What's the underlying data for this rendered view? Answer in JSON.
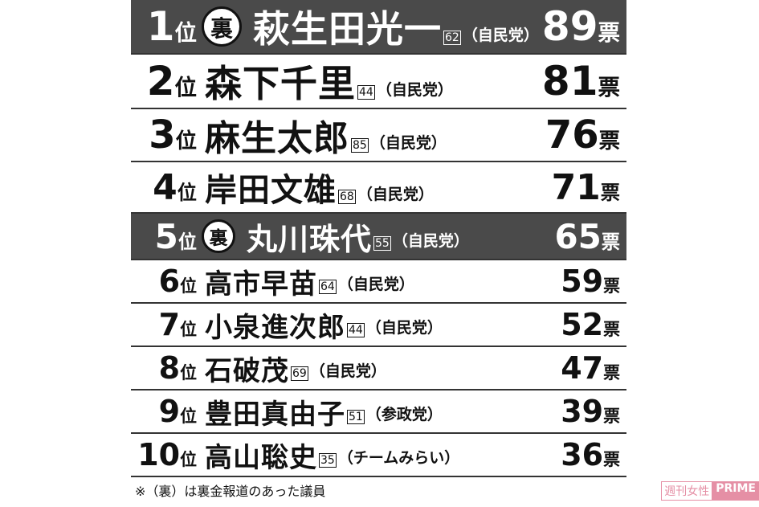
{
  "table": {
    "rows": [
      {
        "rank": 1,
        "rank_unit": "位",
        "mark": "裏",
        "name": "萩生田光一",
        "age": "62",
        "party": "（自民党）",
        "votes": 89,
        "votes_unit": "票"
      },
      {
        "rank": 2,
        "rank_unit": "位",
        "name": "森下千里",
        "age": "44",
        "party": "（自民党）",
        "votes": 81,
        "votes_unit": "票"
      },
      {
        "rank": 3,
        "rank_unit": "位",
        "name": "麻生太郎",
        "age": "85",
        "party": "（自民党）",
        "votes": 76,
        "votes_unit": "票"
      },
      {
        "rank": 4,
        "rank_unit": "位",
        "name": "岸田文雄",
        "age": "68",
        "party": "（自民党）",
        "votes": 71,
        "votes_unit": "票"
      },
      {
        "rank": 5,
        "rank_unit": "位",
        "mark": "裏",
        "name": "丸川珠代",
        "age": "55",
        "party": "（自民党）",
        "votes": 65,
        "votes_unit": "票"
      },
      {
        "rank": 6,
        "rank_unit": "位",
        "name": "高市早苗",
        "age": "64",
        "party": "（自民党）",
        "votes": 59,
        "votes_unit": "票"
      },
      {
        "rank": 7,
        "rank_unit": "位",
        "name": "小泉進次郎",
        "age": "44",
        "party": "（自民党）",
        "votes": 52,
        "votes_unit": "票"
      },
      {
        "rank": 8,
        "rank_unit": "位",
        "name": "石破茂",
        "age": "69",
        "party": "（自民党）",
        "votes": 47,
        "votes_unit": "票"
      },
      {
        "rank": 9,
        "rank_unit": "位",
        "name": "豊田真由子",
        "age": "51",
        "party": "（参政党）",
        "votes": 39,
        "votes_unit": "票"
      },
      {
        "rank": 10,
        "rank_unit": "位",
        "name": "高山聡史",
        "age": "35",
        "party": "（チームみらい）",
        "votes": 36,
        "votes_unit": "票"
      }
    ]
  },
  "footnote": "※（裏）は裏金報道のあった議員",
  "watermark": {
    "brand": "週刊女性",
    "suffix": "PRIME"
  }
}
